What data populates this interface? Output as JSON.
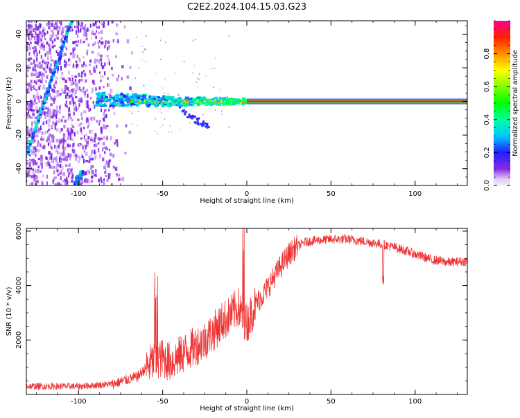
{
  "title": "C2E2.2024.104.15.03.G23",
  "colors": {
    "snr_line": "#ee3333",
    "spectral_line": "#ff2020"
  },
  "chart_data": [
    {
      "type": "heatmap",
      "xlabel": "Height of straight line (km)",
      "ylabel": "Frequency (Hz)",
      "xlim": [
        -131,
        131
      ],
      "ylim": [
        -50,
        48
      ],
      "xticks": [
        -100,
        -50,
        0,
        50,
        100
      ],
      "yticks": [
        -40,
        -20,
        0,
        20,
        40
      ],
      "colorbar": {
        "label": "Normalized spectral amplitude",
        "range": [
          0,
          1
        ],
        "ticks": [
          0.0,
          0.2,
          0.4,
          0.6,
          0.8
        ],
        "colormap": "rainbow"
      },
      "features": [
        {
          "name": "diagonal-streak",
          "x": [
            -131,
            -104
          ],
          "y": [
            -32,
            48
          ]
        },
        {
          "name": "diagonal-streak-lower",
          "x": [
            -102,
            -98
          ],
          "y": [
            -50,
            -42
          ]
        },
        {
          "name": "doppler-band",
          "x": [
            -90,
            0
          ],
          "y": [
            0,
            0
          ]
        },
        {
          "name": "doppler-tail",
          "x": [
            -40,
            -22
          ],
          "y": [
            -5,
            -16
          ]
        },
        {
          "name": "carrier-line",
          "x": [
            0,
            131
          ],
          "y": [
            0,
            0
          ]
        }
      ]
    },
    {
      "type": "line",
      "xlabel": "Height of straight line (km)",
      "ylabel": "SNR (10 * v/v)",
      "xlim": [
        -131,
        131
      ],
      "ylim": [
        0,
        6100
      ],
      "xticks": [
        -100,
        -50,
        0,
        50,
        100
      ],
      "yticks": [
        2000,
        4000,
        6000
      ],
      "series_envelope": {
        "x": [
          -131,
          -100,
          -80,
          -65,
          -58,
          -52,
          -45,
          -38,
          -30,
          -25,
          -20,
          -15,
          -10,
          -5,
          0,
          5,
          10,
          15,
          20,
          25,
          30,
          35,
          40,
          50,
          60,
          70,
          80,
          90,
          100,
          110,
          120,
          131
        ],
        "y": [
          300,
          300,
          380,
          650,
          1100,
          1350,
          1200,
          1500,
          1800,
          2000,
          2300,
          2650,
          2900,
          3200,
          2600,
          3300,
          3700,
          4200,
          4700,
          5150,
          5450,
          5600,
          5650,
          5700,
          5700,
          5620,
          5520,
          5370,
          5150,
          4950,
          4850,
          4900
        ]
      }
    }
  ]
}
